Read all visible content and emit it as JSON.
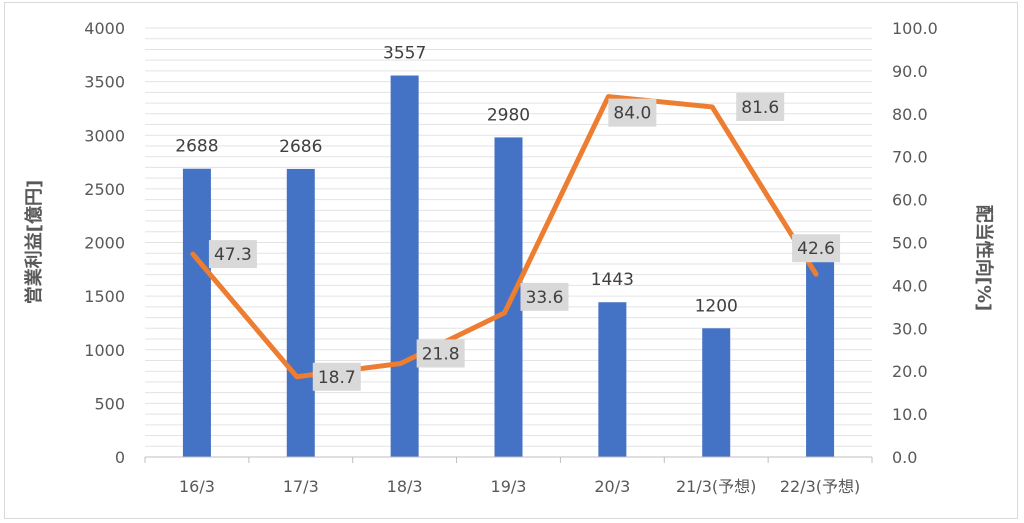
{
  "chart_data": {
    "type": "bar",
    "categories": [
      "16/3",
      "17/3",
      "18/3",
      "19/3",
      "20/3",
      "21/3(予想)",
      "22/3(予想)"
    ],
    "series": [
      {
        "type": "bar",
        "axis": "left",
        "values": [
          2688,
          2686,
          3557,
          2980,
          1443,
          1200,
          1900
        ],
        "labels": [
          "2688",
          "2686",
          "3557",
          "2980",
          "1443",
          "1200",
          ""
        ],
        "color": "#4472c4"
      },
      {
        "type": "line",
        "axis": "right",
        "values": [
          47.3,
          18.7,
          21.8,
          33.6,
          84.0,
          81.6,
          42.6
        ],
        "labels": [
          "47.3",
          "18.7",
          "21.8",
          "33.6",
          "84.0",
          "81.6",
          "42.6"
        ],
        "color": "#ed7d31"
      }
    ],
    "ylabel": "営業利益[億円]",
    "y2label": "配当性向[%]",
    "ylim": [
      0,
      4000
    ],
    "y2lim": [
      0,
      100
    ],
    "yticks": [
      "0",
      "500",
      "1000",
      "1500",
      "2000",
      "2500",
      "3000",
      "3500",
      "4000"
    ],
    "y2ticks": [
      "0.0",
      "10.0",
      "20.0",
      "30.0",
      "40.0",
      "50.0",
      "60.0",
      "70.0",
      "80.0",
      "90.0",
      "100.0"
    ],
    "grid": true,
    "legend": "none"
  }
}
